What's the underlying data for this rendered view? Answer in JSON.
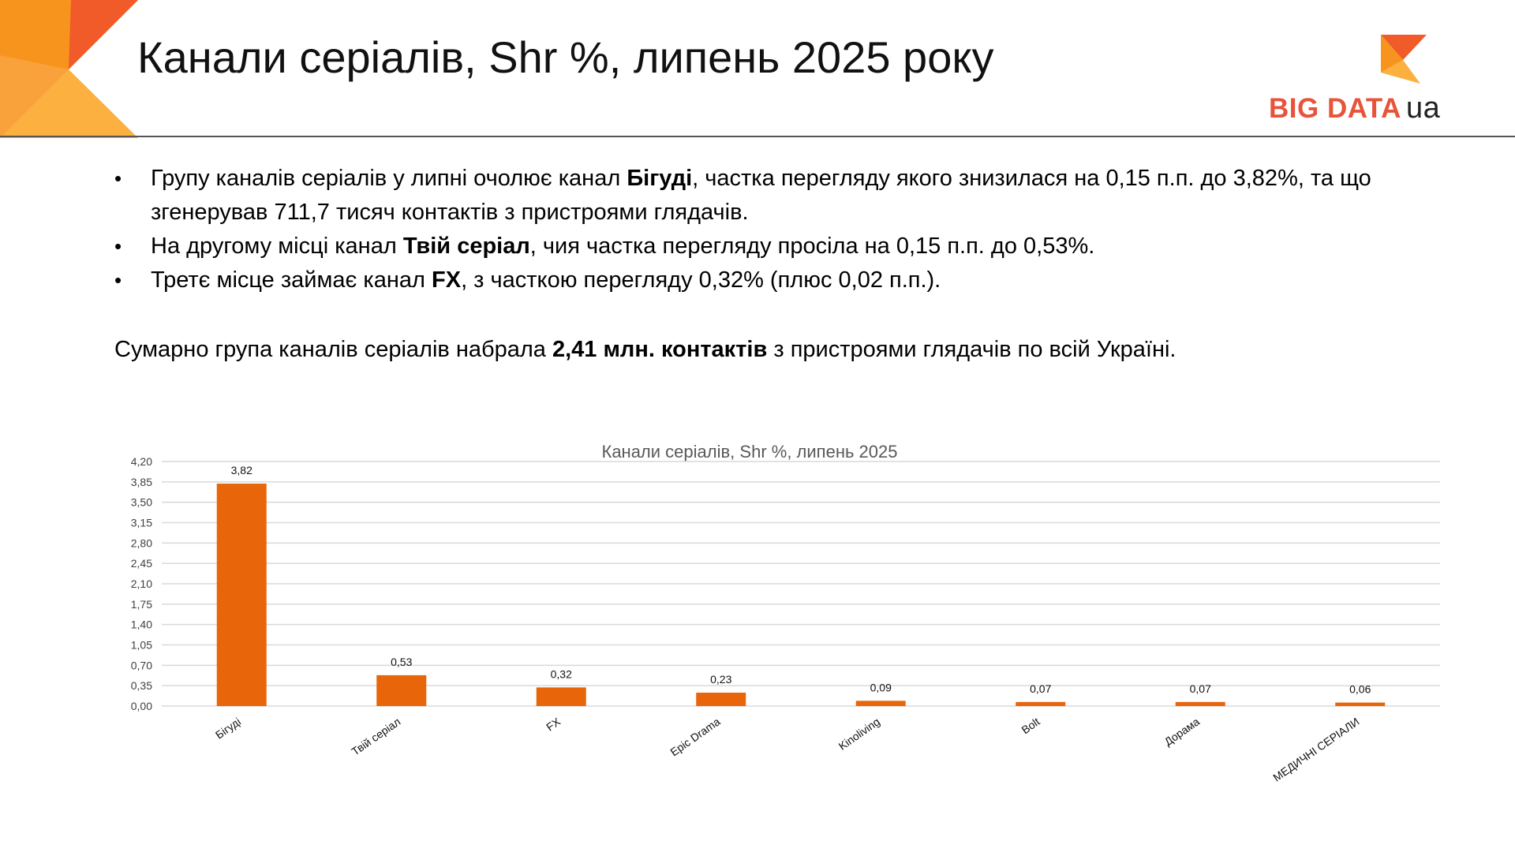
{
  "slide": {
    "title": "Канали серіалів, Shr %, липень 2025 року"
  },
  "logo": {
    "text_main": "BIG DATA",
    "text_suffix": "ua",
    "colors": [
      "#f0542b",
      "#f7941d",
      "#fbb040"
    ]
  },
  "bullets": [
    {
      "pre": "Групу каналів серіалів у липні очолює канал ",
      "bold": "Бігуді",
      "post": ", частка перегляду якого знизилася на 0,15 п.п. до 3,82%, та що згенерував 711,7  тисяч контактів з пристроями глядачів."
    },
    {
      "pre": "На другому місці канал ",
      "bold": "Твій серіал",
      "post": ", чия частка перегляду просіла на 0,15 п.п. до 0,53%."
    },
    {
      "pre": "Третє місце займає канал  ",
      "bold": "FX",
      "post": ", з часткою перегляду 0,32% (плюс 0,02 п.п.)."
    }
  ],
  "summary": {
    "pre": "Сумарно група каналів серіалів набрала ",
    "bold": "2,41 млн. контактів",
    "post": " з пристроями глядачів по всій Україні."
  },
  "chart_data": {
    "type": "bar",
    "title": "Канали серіалів, Shr %, липень 2025",
    "categories": [
      "Бігуді",
      "Твій серіал",
      "FX",
      "Epic Drama",
      "Kinoliving",
      "Bolt",
      "Дорама",
      "МЕДИЧНІ СЕРІАЛИ"
    ],
    "values": [
      3.82,
      0.53,
      0.32,
      0.23,
      0.09,
      0.07,
      0.07,
      0.06
    ],
    "value_labels": [
      "3,82",
      "0,53",
      "0,32",
      "0,23",
      "0,09",
      "0,07",
      "0,07",
      "0,06"
    ],
    "yticks": [
      "0,00",
      "0,35",
      "0,70",
      "1,05",
      "1,40",
      "1,75",
      "2,10",
      "2,45",
      "2,80",
      "3,15",
      "3,50",
      "3,85",
      "4,20"
    ],
    "ylim": [
      0,
      4.2
    ],
    "grid": true,
    "bar_color": "#e8650a",
    "grid_color": "#d9d9d9"
  }
}
